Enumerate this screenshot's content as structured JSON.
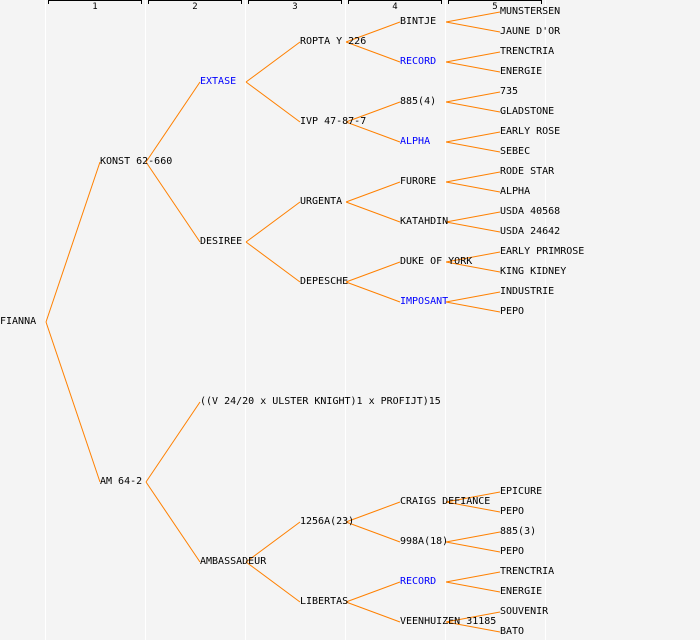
{
  "columns": [
    "1",
    "2",
    "3",
    "4",
    "5"
  ],
  "colors": {
    "line": "#ff8000",
    "highlight": "#0000ff",
    "text": "#000000",
    "background": "#f4f4f4",
    "separator": "#ffffff"
  },
  "generations": [
    [
      {
        "name": "FIANNA"
      }
    ],
    [
      {
        "name": "KONST 62-660"
      },
      {
        "name": "AM 64-2"
      }
    ],
    [
      {
        "name": "EXTASE",
        "highlight": true
      },
      {
        "name": "DESIREE"
      },
      {
        "name": "((V 24/20 x ULSTER KNIGHT)1 x PROFIJT)15"
      },
      {
        "name": "AMBASSADEUR"
      }
    ],
    [
      {
        "name": "ROPTA Y 226"
      },
      {
        "name": "IVP 47-87-7"
      },
      {
        "name": "URGENTA"
      },
      {
        "name": "DEPESCHE"
      },
      null,
      null,
      {
        "name": "1256A(23)"
      },
      {
        "name": "LIBERTAS"
      }
    ],
    [
      {
        "name": "BINTJE"
      },
      {
        "name": "RECORD",
        "highlight": true
      },
      {
        "name": "885(4)"
      },
      {
        "name": "ALPHA",
        "highlight": true
      },
      {
        "name": "FURORE"
      },
      {
        "name": "KATAHDIN"
      },
      {
        "name": "DUKE OF YORK"
      },
      {
        "name": "IMPOSANT",
        "highlight": true
      },
      null,
      null,
      null,
      null,
      {
        "name": "CRAIGS DEFIANCE"
      },
      {
        "name": "998A(18)"
      },
      {
        "name": "RECORD",
        "highlight": true
      },
      {
        "name": "VEENHUIZEN 31185"
      }
    ],
    [
      {
        "name": "MUNSTERSEN"
      },
      {
        "name": "JAUNE D'OR"
      },
      {
        "name": "TRENCTRIA"
      },
      {
        "name": "ENERGIE"
      },
      {
        "name": "735"
      },
      {
        "name": "GLADSTONE"
      },
      {
        "name": "EARLY ROSE"
      },
      {
        "name": "SEBEC"
      },
      {
        "name": "RODE STAR"
      },
      {
        "name": "ALPHA"
      },
      {
        "name": "USDA 40568"
      },
      {
        "name": "USDA 24642"
      },
      {
        "name": "EARLY PRIMROSE"
      },
      {
        "name": "KING KIDNEY"
      },
      {
        "name": "INDUSTRIE"
      },
      {
        "name": "PEPO"
      },
      null,
      null,
      null,
      null,
      null,
      null,
      null,
      null,
      {
        "name": "EPICURE"
      },
      {
        "name": "PEPO"
      },
      {
        "name": "885(3)"
      },
      {
        "name": "PEPO"
      },
      {
        "name": "TRENCTRIA"
      },
      {
        "name": "ENERGIE"
      },
      {
        "name": "SOUVENIR"
      },
      {
        "name": "BATO"
      }
    ]
  ]
}
